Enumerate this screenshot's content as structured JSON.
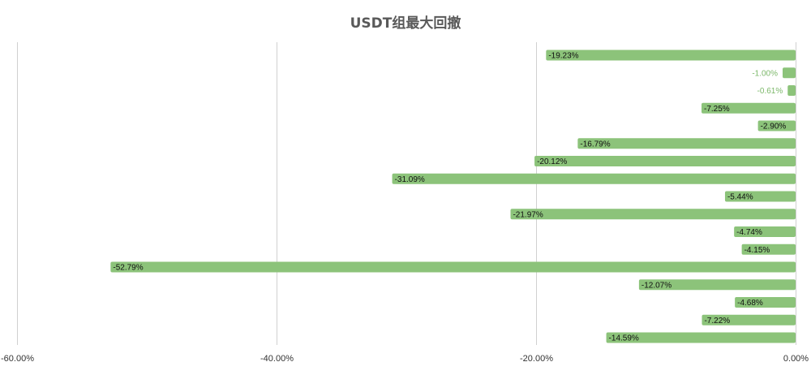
{
  "chart_data": {
    "type": "bar",
    "orientation": "horizontal",
    "title": "USDT组最大回撤",
    "xlabel": "",
    "ylabel": "",
    "xlim": [
      -60,
      0
    ],
    "x_ticks": [
      "-60.00%",
      "-40.00%",
      "-20.00%",
      "0.00%"
    ],
    "x_tick_values": [
      -60,
      -40,
      -20,
      0
    ],
    "grid": "vertical",
    "legend": "none",
    "bar_color": "#8cc37a",
    "label_color_dark": "#111111",
    "label_color_light": "#7cb86a",
    "series": [
      {
        "values": [
          -19.23,
          -1.0,
          -0.61,
          -7.25,
          -2.9,
          -16.79,
          -20.12,
          -31.09,
          -5.44,
          -21.97,
          -4.74,
          -4.15,
          -52.79,
          -12.07,
          -4.68,
          -7.22,
          -14.59
        ],
        "labels": [
          "-19.23%",
          "-1.00%",
          "-0.61%",
          "-7.25%",
          "-2.90%",
          "-16.79%",
          "-20.12%",
          "-31.09%",
          "-5.44%",
          "-21.97%",
          "-4.74%",
          "-4.15%",
          "-52.79%",
          "-12.07%",
          "-4.68%",
          "-7.22%",
          "-14.59%"
        ]
      }
    ]
  }
}
